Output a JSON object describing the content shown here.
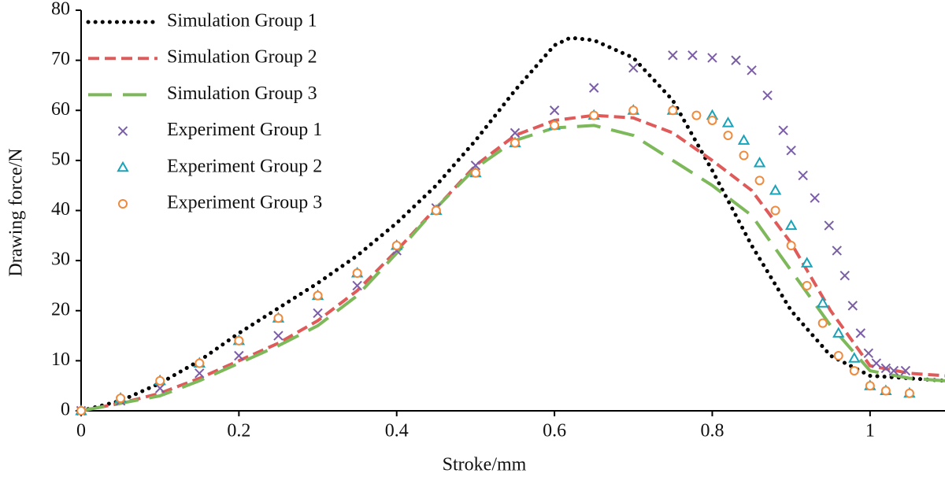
{
  "chart_data": {
    "type": "line",
    "x_label": "Stroke/mm",
    "y_label": "Drawing force/N",
    "xlim": [
      0,
      1.095
    ],
    "ylim": [
      0,
      80
    ],
    "xticks": [
      0,
      0.2,
      0.4,
      0.6,
      0.8,
      1
    ],
    "yticks": [
      0,
      10,
      20,
      30,
      40,
      50,
      60,
      70,
      80
    ],
    "grid": false,
    "legend": "upper left",
    "series": [
      {
        "name": "Simulation Group 1",
        "kind": "line",
        "style": "dotted",
        "color": "#000000",
        "x": [
          0,
          0.05,
          0.1,
          0.15,
          0.2,
          0.25,
          0.3,
          0.35,
          0.4,
          0.45,
          0.5,
          0.55,
          0.6,
          0.62,
          0.65,
          0.7,
          0.75,
          0.8,
          0.85,
          0.9,
          0.95,
          1.0,
          1.05,
          1.095
        ],
        "values": [
          0,
          2,
          5.5,
          10,
          15.5,
          20.5,
          25.5,
          31,
          37.5,
          45,
          54,
          64,
          73,
          74.5,
          74,
          70.5,
          62,
          48,
          33,
          20,
          11,
          7,
          6.5,
          6
        ]
      },
      {
        "name": "Simulation Group 2",
        "kind": "line",
        "style": "dashed",
        "color": "#e05a5a",
        "x": [
          0,
          0.05,
          0.1,
          0.15,
          0.2,
          0.25,
          0.3,
          0.35,
          0.4,
          0.45,
          0.5,
          0.55,
          0.6,
          0.65,
          0.7,
          0.75,
          0.8,
          0.85,
          0.9,
          0.95,
          1.0,
          1.05,
          1.095
        ],
        "values": [
          0,
          1.5,
          3.5,
          6.5,
          10,
          13.5,
          18,
          24,
          32,
          40.5,
          49,
          55,
          58,
          59,
          58.5,
          55.5,
          50,
          44,
          33.5,
          20,
          9,
          7.5,
          7
        ]
      },
      {
        "name": "Simulation Group 3",
        "kind": "line",
        "style": "longdash",
        "color": "#7db85a",
        "x": [
          0,
          0.05,
          0.1,
          0.15,
          0.2,
          0.25,
          0.3,
          0.35,
          0.4,
          0.45,
          0.5,
          0.55,
          0.6,
          0.65,
          0.7,
          0.75,
          0.8,
          0.85,
          0.9,
          0.95,
          1.0,
          1.05,
          1.095
        ],
        "values": [
          0,
          1.5,
          3,
          6,
          9.5,
          13,
          17,
          23,
          31.5,
          40.5,
          48.5,
          54,
          56.5,
          57,
          55,
          50,
          45,
          39,
          28,
          17,
          8,
          6.5,
          6
        ]
      },
      {
        "name": "Experiment Group 1",
        "kind": "scatter",
        "marker": "x",
        "color": "#7b5ea7",
        "x": [
          0,
          0.05,
          0.1,
          0.15,
          0.2,
          0.25,
          0.3,
          0.35,
          0.4,
          0.45,
          0.5,
          0.55,
          0.6,
          0.65,
          0.7,
          0.75,
          0.775,
          0.8,
          0.83,
          0.85,
          0.87,
          0.89,
          0.9,
          0.915,
          0.93,
          0.948,
          0.958,
          0.968,
          0.978,
          0.988,
          0.998,
          1.008,
          1.02,
          1.03,
          1.045
        ],
        "values": [
          0,
          2,
          4.5,
          7.5,
          11,
          15,
          19.5,
          25,
          32,
          40.5,
          49,
          55.5,
          60,
          64.5,
          68.5,
          71,
          71,
          70.5,
          70,
          68,
          63,
          56,
          52,
          47,
          42.5,
          37,
          32,
          27,
          21,
          15.5,
          11.5,
          9.5,
          8.5,
          8,
          8
        ]
      },
      {
        "name": "Experiment Group 2",
        "kind": "scatter",
        "marker": "triangle",
        "color": "#1aa3b8",
        "x": [
          0,
          0.05,
          0.1,
          0.15,
          0.2,
          0.25,
          0.3,
          0.35,
          0.4,
          0.45,
          0.5,
          0.55,
          0.6,
          0.65,
          0.7,
          0.75,
          0.8,
          0.82,
          0.84,
          0.86,
          0.88,
          0.9,
          0.92,
          0.94,
          0.96,
          0.98,
          1.0,
          1.02,
          1.05
        ],
        "values": [
          0,
          2.5,
          6,
          9.5,
          14,
          18.5,
          23,
          27.5,
          33,
          40,
          47.5,
          53.5,
          57,
          59,
          60,
          60,
          59,
          57.5,
          54,
          49.5,
          44,
          37,
          29.5,
          21.5,
          15.5,
          10.5,
          5,
          4,
          3.5
        ]
      },
      {
        "name": "Experiment Group 3",
        "kind": "scatter",
        "marker": "circle",
        "color": "#f08a3c",
        "x": [
          0,
          0.05,
          0.1,
          0.15,
          0.2,
          0.25,
          0.3,
          0.35,
          0.4,
          0.45,
          0.5,
          0.55,
          0.6,
          0.65,
          0.7,
          0.75,
          0.78,
          0.8,
          0.82,
          0.84,
          0.86,
          0.88,
          0.9,
          0.92,
          0.94,
          0.96,
          0.98,
          1.0,
          1.02,
          1.05
        ],
        "values": [
          0,
          2.5,
          6,
          9.5,
          14,
          18.5,
          23,
          27.5,
          33,
          40,
          47.5,
          53.5,
          57,
          59,
          60,
          60,
          59,
          58,
          55,
          51,
          46,
          40,
          33,
          25,
          17.5,
          11,
          8,
          5,
          4,
          3.5
        ]
      }
    ]
  }
}
